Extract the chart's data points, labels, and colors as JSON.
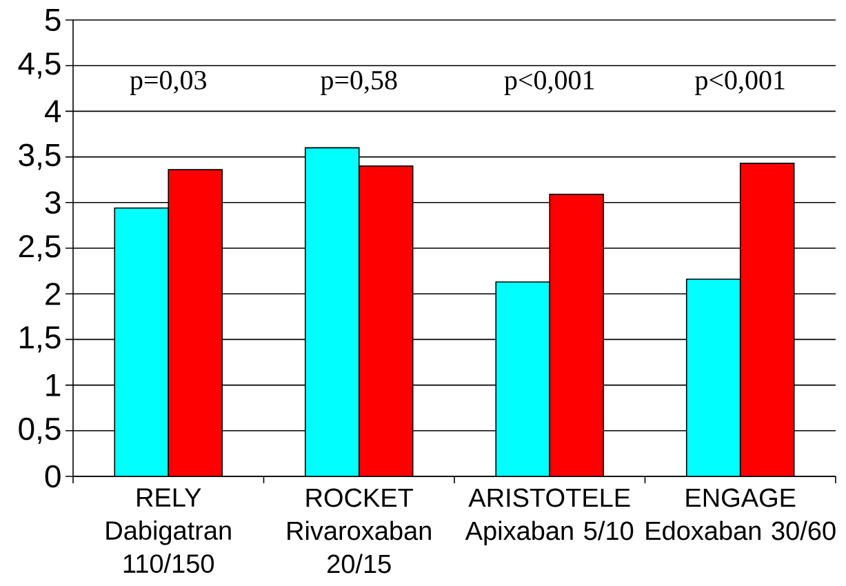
{
  "chart_data": {
    "type": "bar",
    "categories": [
      "RELY Dabigatran 110/150",
      "ROCKET Rivaroxaban 20/15",
      "ARISTOTELE Apixaban 5/10",
      "ENGAGE Edoxaban 30/60"
    ],
    "series": [
      {
        "color": "#00ffff",
        "values": [
          2.94,
          3.6,
          2.13,
          2.16
        ]
      },
      {
        "color": "#ff0000",
        "values": [
          3.36,
          3.4,
          3.09,
          3.43
        ]
      }
    ],
    "ylim": [
      0,
      5
    ],
    "yticks": [
      0,
      {
        "value": 0.5,
        "label": "0,5"
      },
      1,
      {
        "value": 1.5,
        "label": "1,5"
      },
      2,
      {
        "value": 2.5,
        "label": "2,5"
      },
      3,
      {
        "value": 3.5,
        "label": "3,5"
      },
      4,
      {
        "value": 4.5,
        "label": "4,5"
      },
      5
    ],
    "grid": "y",
    "annotations": [
      "p=0,03",
      "p=0,58",
      "p<0,001",
      "p<0,001"
    ]
  }
}
